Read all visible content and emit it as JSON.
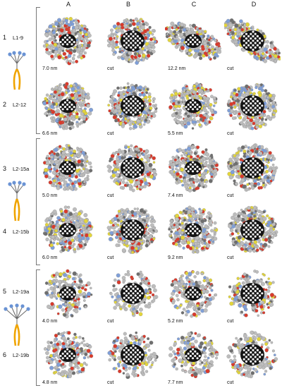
{
  "columns": [
    "A",
    "B",
    "C",
    "D"
  ],
  "rows": [
    {
      "num": "1",
      "name": "L1-9",
      "labels": [
        "7.0 nm",
        "cut",
        "12.2 nm",
        "cut"
      ]
    },
    {
      "num": "2",
      "name": "L2-12",
      "labels": [
        "6.6 nm",
        "cut",
        "5.5 nm",
        "cut"
      ]
    },
    {
      "num": "3",
      "name": "L2-15a",
      "labels": [
        "5.0 nm",
        "cut",
        "7.4 nm",
        "cut"
      ]
    },
    {
      "num": "4",
      "name": "L2-15b",
      "labels": [
        "6.0 nm",
        "cut",
        "9.2 nm",
        "cut"
      ]
    },
    {
      "num": "5",
      "name": "L2-19a",
      "labels": [
        "4.0 nm",
        "cut",
        "5.2 nm",
        "cut"
      ]
    },
    {
      "num": "6",
      "name": "L2-19b",
      "labels": [
        "4.8 nm",
        "cut",
        "7.7 nm",
        "cut"
      ]
    }
  ],
  "colors": {
    "atom_grey": "#bdbdbd",
    "atom_dark": "#6e6e6e",
    "atom_yellow": "#e3d53a",
    "atom_red": "#d93a2b",
    "atom_blue": "#7f9fd8",
    "core_black": "#141414",
    "core_white": "#f2f2f2",
    "lipid_orange": "#f0a400",
    "headgroup_blue": "#6a93d4"
  }
}
